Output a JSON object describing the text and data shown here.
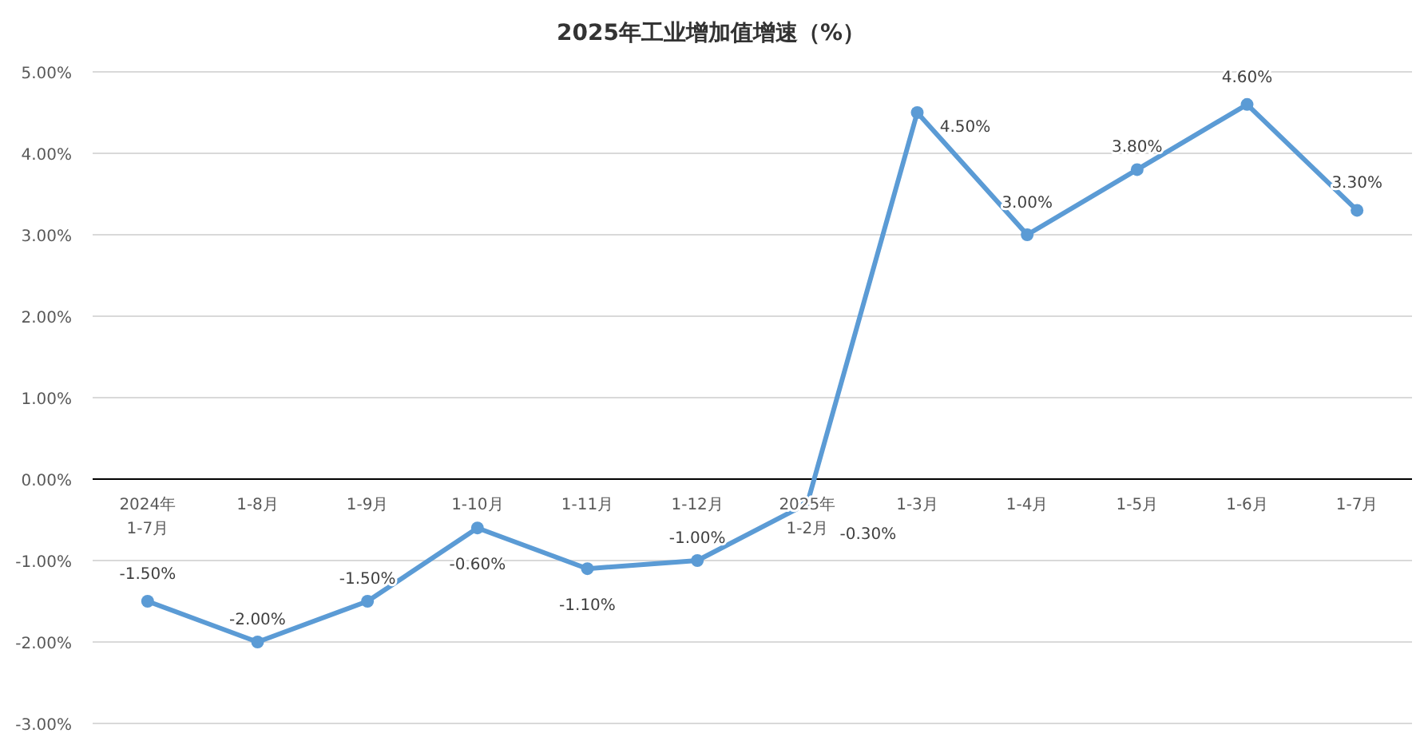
{
  "chart_data": {
    "type": "line",
    "title": "2025年工业增加值增速（%）",
    "categories": [
      "2024年1-7月",
      "1-8月",
      "1-9月",
      "1-10月",
      "1-11月",
      "1-12月",
      "2025年1-2月",
      "1-3月",
      "1-4月",
      "1-5月",
      "1-6月",
      "1-7月"
    ],
    "series": [
      {
        "color": "#5b9bd5",
        "values": [
          -1.5,
          -2.0,
          -1.5,
          -0.6,
          -1.1,
          -1.0,
          -0.3,
          4.5,
          3.0,
          3.8,
          4.6,
          3.3
        ],
        "value_labels": [
          "-1.50%",
          "-2.00%",
          "-1.50%",
          "-0.60%",
          "-1.10%",
          "-1.00%",
          "-0.30%",
          "4.50%",
          "3.00%",
          "3.80%",
          "4.60%",
          "3.30%"
        ]
      }
    ],
    "ylim": [
      -3,
      5
    ],
    "yticks": [
      {
        "value": -3,
        "label": "-3.00%"
      },
      {
        "value": -2,
        "label": "-2.00%"
      },
      {
        "value": -1,
        "label": "-1.00%"
      },
      {
        "value": 0,
        "label": "0.00%"
      },
      {
        "value": 1,
        "label": "1.00%"
      },
      {
        "value": 2,
        "label": "2.00%"
      },
      {
        "value": 3,
        "label": "3.00%"
      },
      {
        "value": 4,
        "label": "4.00%"
      },
      {
        "value": 5,
        "label": "5.00%"
      }
    ],
    "grid": "y",
    "marker": "circle",
    "line_style": "solid"
  }
}
